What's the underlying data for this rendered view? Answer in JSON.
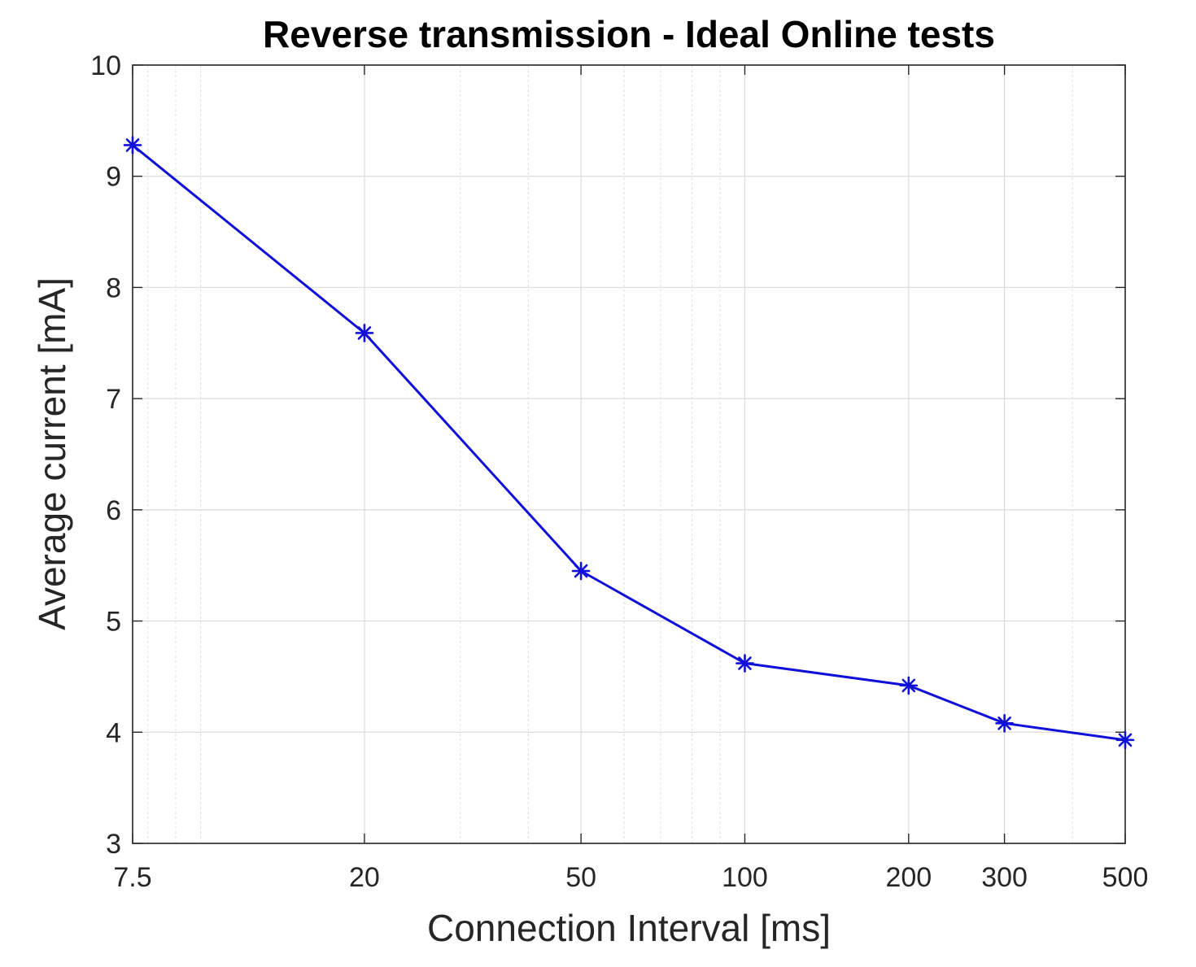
{
  "chart_data": {
    "type": "line",
    "title": "Reverse transmission - Ideal Online tests",
    "xlabel": "Connection Interval [ms]",
    "ylabel": "Average current [mA]",
    "x_scale": "log",
    "xlim": [
      7.5,
      500
    ],
    "ylim": [
      3,
      10
    ],
    "x_ticks": [
      7.5,
      20,
      50,
      100,
      200,
      300,
      500
    ],
    "x_tick_labels": [
      "7.5",
      "20",
      "50",
      "100",
      "200",
      "300",
      "500"
    ],
    "y_ticks": [
      3,
      4,
      5,
      6,
      7,
      8,
      9,
      10
    ],
    "y_tick_labels": [
      "3",
      "4",
      "5",
      "6",
      "7",
      "8",
      "9",
      "10"
    ],
    "grid": true,
    "minor_grid": true,
    "series": [
      {
        "color": "#1010d8",
        "marker": "asterisk",
        "x": [
          7.5,
          20,
          50,
          100,
          200,
          300,
          500
        ],
        "y": [
          9.28,
          7.59,
          5.45,
          4.62,
          4.42,
          4.08,
          3.93
        ]
      }
    ]
  }
}
